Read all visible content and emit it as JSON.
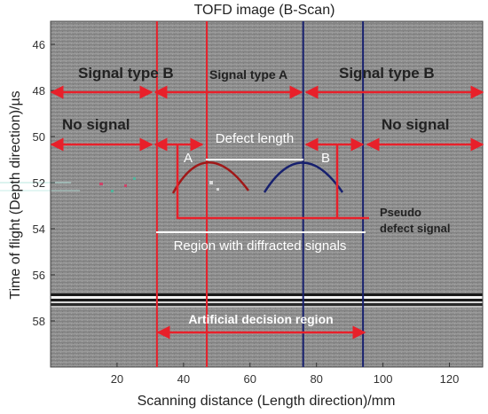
{
  "title": "TOFD image (B-Scan)",
  "xlabel": "Scanning distance (Length direction)/mm",
  "ylabel": "Time of flight (Depth direction)/µs",
  "xlim": [
    0,
    130
  ],
  "ylim": [
    45,
    60
  ],
  "xticks": [
    20,
    40,
    60,
    80,
    100,
    120
  ],
  "yticks": [
    46,
    48,
    50,
    52,
    54,
    56,
    58
  ],
  "colors": {
    "annotation_red": "#e8202a",
    "signal_blue": "#17206e",
    "hyperbola_red": "#a01818",
    "scan_background": "#8d8d8d",
    "white_text": "#ffffff",
    "dark_text": "#222222"
  },
  "boundary_lines": {
    "red_x": [
      32,
      47
    ],
    "blue_x": [
      76,
      94
    ]
  },
  "labels": {
    "signal_type_b_left": "Signal type B",
    "signal_type_a": "Signal type A",
    "signal_type_b_right": "Signal type B",
    "no_signal_left": "No signal",
    "no_signal_right": "No signal",
    "defect_length": "Defect length",
    "marker_a": "A",
    "marker_b": "B",
    "pseudo_line1": "Pseudo",
    "pseudo_line2": "defect signal",
    "diffracted_region": "Region with diffracted signals",
    "decision_region": "Artificial decision region"
  }
}
